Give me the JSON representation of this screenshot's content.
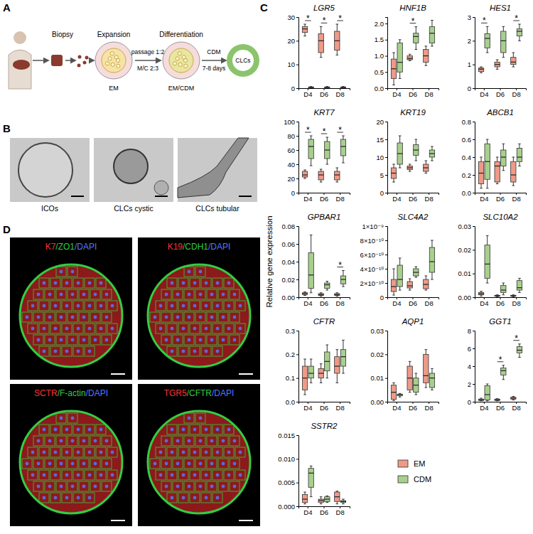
{
  "figure": {
    "panel_labels": [
      "A",
      "B",
      "C",
      "D"
    ],
    "y_label": "Relative gene expression"
  },
  "schematic": {
    "steps": [
      "Biopsy",
      "Expansion",
      "Differentiation"
    ],
    "notes": [
      "passage 1:2",
      "M/C 2:3",
      "CDM",
      "7-8 days"
    ],
    "dishes": [
      "EM",
      "EM/CDM"
    ],
    "product": "CLCs"
  },
  "micrographs": [
    "ICOs",
    "CLCs cystic",
    "CLCs tubular"
  ],
  "immunofluorescence": [
    [
      {
        "text": "K7",
        "color": "#ff3030"
      },
      {
        "text": "/ZO1",
        "color": "#33cc44"
      },
      {
        "text": "/DAPI",
        "color": "#5577ff"
      }
    ],
    [
      {
        "text": "K19",
        "color": "#ff3030"
      },
      {
        "text": "/CDH1",
        "color": "#33cc44"
      },
      {
        "text": "/DAPI",
        "color": "#5577ff"
      }
    ],
    [
      {
        "text": "SCTR",
        "color": "#ff3030"
      },
      {
        "text": "/F-actin",
        "color": "#33cc44"
      },
      {
        "text": "/DAPI",
        "color": "#5577ff"
      }
    ],
    [
      {
        "text": "TGR5",
        "color": "#ff3030"
      },
      {
        "text": "/CFTR",
        "color": "#33cc44"
      },
      {
        "text": "/DAPI",
        "color": "#5577ff"
      }
    ]
  ],
  "chart_data": [
    {
      "type": "box",
      "title": "LGR5",
      "categories": [
        "D4",
        "D6",
        "D8"
      ],
      "ylim": [
        0,
        30
      ],
      "yticks": [
        0,
        10,
        20,
        30
      ],
      "series": [
        {
          "color": "#ee9a87",
          "min": [
            22,
            13,
            14
          ],
          "q1": [
            23.5,
            15,
            16
          ],
          "median": [
            25,
            20,
            20
          ],
          "q3": [
            26,
            23,
            24
          ],
          "max": [
            27,
            26,
            27
          ]
        },
        {
          "color": "#a8d08d",
          "min": [
            0.1,
            0.1,
            0.1
          ],
          "q1": [
            0.2,
            0.2,
            0.2
          ],
          "median": [
            0.3,
            0.3,
            0.3
          ],
          "q3": [
            0.5,
            0.5,
            0.5
          ],
          "max": [
            0.7,
            0.7,
            0.7
          ]
        }
      ],
      "annotations": [
        {
          "category": "D4",
          "text": "*"
        },
        {
          "category": "D6",
          "text": "*"
        },
        {
          "category": "D8",
          "text": "*"
        }
      ]
    },
    {
      "type": "box",
      "title": "HNF1B",
      "categories": [
        "D4",
        "D6",
        "D8"
      ],
      "ylim": [
        0,
        2.2
      ],
      "yticks": [
        {
          "value": 0,
          "label": "0.0"
        },
        0.5,
        {
          "value": 1,
          "label": "1.0"
        },
        1.5,
        {
          "value": 2,
          "label": "2.0"
        }
      ],
      "series": [
        {
          "color": "#ee9a87",
          "min": [
            0.1,
            0.85,
            0.7
          ],
          "q1": [
            0.3,
            0.88,
            0.8
          ],
          "median": [
            0.6,
            0.92,
            1.0
          ],
          "q3": [
            0.9,
            1.0,
            1.2
          ],
          "max": [
            1.1,
            1.05,
            1.3
          ]
        },
        {
          "color": "#a8d08d",
          "min": [
            0.3,
            1.2,
            1.3
          ],
          "q1": [
            0.5,
            1.4,
            1.4
          ],
          "median": [
            0.8,
            1.6,
            1.7
          ],
          "q3": [
            1.4,
            1.7,
            1.9
          ],
          "max": [
            1.5,
            1.9,
            2.1
          ]
        }
      ],
      "annotations": [
        {
          "category": "D6",
          "text": "*"
        }
      ]
    },
    {
      "type": "box",
      "title": "HES1",
      "categories": [
        "D4",
        "D6",
        "D8"
      ],
      "ylim": [
        0,
        3
      ],
      "yticks": [
        0,
        1,
        2,
        3
      ],
      "series": [
        {
          "color": "#ee9a87",
          "min": [
            0.65,
            0.8,
            0.9
          ],
          "q1": [
            0.7,
            0.9,
            1.0
          ],
          "median": [
            0.8,
            1.0,
            1.1
          ],
          "q3": [
            0.85,
            1.1,
            1.3
          ],
          "max": [
            0.9,
            1.2,
            1.5
          ]
        },
        {
          "color": "#a8d08d",
          "min": [
            1.5,
            1.3,
            2.0
          ],
          "q1": [
            1.7,
            1.5,
            2.2
          ],
          "median": [
            2.1,
            2.0,
            2.4
          ],
          "q3": [
            2.3,
            2.4,
            2.5
          ],
          "max": [
            2.6,
            2.6,
            2.7
          ]
        }
      ],
      "annotations": [
        {
          "category": "D4",
          "text": "*"
        },
        {
          "category": "D8",
          "text": "*"
        }
      ]
    },
    {
      "type": "box",
      "title": "KRT7",
      "categories": [
        "D4",
        "D6",
        "D8"
      ],
      "ylim": [
        0,
        100
      ],
      "yticks": [
        0,
        20,
        40,
        60,
        80,
        100
      ],
      "series": [
        {
          "color": "#ee9a87",
          "min": [
            20,
            15,
            15
          ],
          "q1": [
            22,
            18,
            18
          ],
          "median": [
            25,
            25,
            25
          ],
          "q3": [
            30,
            30,
            30
          ],
          "max": [
            32,
            33,
            35
          ]
        },
        {
          "color": "#a8d08d",
          "min": [
            38,
            40,
            42
          ],
          "q1": [
            48,
            48,
            52
          ],
          "median": [
            65,
            60,
            65
          ],
          "q3": [
            75,
            72,
            75
          ],
          "max": [
            80,
            78,
            80
          ]
        }
      ],
      "annotations": [
        {
          "category": "D4",
          "text": "*"
        },
        {
          "category": "D6",
          "text": "*"
        },
        {
          "category": "D8",
          "text": "*"
        }
      ]
    },
    {
      "type": "box",
      "title": "KRT19",
      "categories": [
        "D4",
        "D6",
        "D8"
      ],
      "ylim": [
        0,
        20
      ],
      "yticks": [
        0,
        5,
        10,
        15,
        20
      ],
      "series": [
        {
          "color": "#ee9a87",
          "min": [
            3,
            6,
            5.5
          ],
          "q1": [
            4,
            6.5,
            6
          ],
          "median": [
            5.5,
            7,
            7
          ],
          "q3": [
            7,
            7.5,
            8
          ],
          "max": [
            8,
            8,
            9
          ]
        },
        {
          "color": "#a8d08d",
          "min": [
            7,
            9,
            9
          ],
          "q1": [
            8,
            10.5,
            10
          ],
          "median": [
            11,
            12,
            11
          ],
          "q3": [
            14,
            13.5,
            12
          ],
          "max": [
            16,
            15,
            13
          ]
        }
      ]
    },
    {
      "type": "box",
      "title": "ABCB1",
      "categories": [
        "D4",
        "D6",
        "D8"
      ],
      "ylim": [
        0,
        0.8
      ],
      "yticks": [
        {
          "value": 0,
          "label": "0.0"
        },
        0.2,
        0.4,
        0.6,
        0.8
      ],
      "series": [
        {
          "color": "#ee9a87",
          "min": [
            0.05,
            0.1,
            0.08
          ],
          "q1": [
            0.1,
            0.12,
            0.12
          ],
          "median": [
            0.22,
            0.3,
            0.2
          ],
          "q3": [
            0.35,
            0.35,
            0.35
          ],
          "max": [
            0.4,
            0.4,
            0.4
          ]
        },
        {
          "color": "#a8d08d",
          "min": [
            0.05,
            0.25,
            0.3
          ],
          "q1": [
            0.15,
            0.3,
            0.35
          ],
          "median": [
            0.35,
            0.4,
            0.4
          ],
          "q3": [
            0.55,
            0.48,
            0.5
          ],
          "max": [
            0.6,
            0.55,
            0.55
          ]
        }
      ]
    },
    {
      "type": "box",
      "title": "GPBAR1",
      "categories": [
        "D4",
        "D6",
        "D8"
      ],
      "ylim": [
        0,
        0.08
      ],
      "yticks": [
        {
          "value": 0,
          "label": "0.00"
        },
        0.02,
        0.04,
        0.06,
        0.08
      ],
      "series": [
        {
          "color": "#ee9a87",
          "min": [
            0.002,
            0.001,
            0.001
          ],
          "q1": [
            0.003,
            0.002,
            0.002
          ],
          "median": [
            0.004,
            0.003,
            0.003
          ],
          "q3": [
            0.005,
            0.004,
            0.004
          ],
          "max": [
            0.006,
            0.005,
            0.005
          ]
        },
        {
          "color": "#a8d08d",
          "min": [
            0.005,
            0.008,
            0.012
          ],
          "q1": [
            0.01,
            0.01,
            0.015
          ],
          "median": [
            0.025,
            0.014,
            0.02
          ],
          "q3": [
            0.05,
            0.016,
            0.024
          ],
          "max": [
            0.07,
            0.018,
            0.03
          ]
        }
      ],
      "annotations": [
        {
          "category": "D8",
          "text": "*"
        }
      ]
    },
    {
      "type": "box",
      "title": "SLC4A2",
      "categories": [
        "D4",
        "D6",
        "D8"
      ],
      "ylim": [
        0,
        1e-09
      ],
      "yticks": [
        0,
        {
          "value": 2e-10,
          "label": "2×10⁻¹⁰"
        },
        {
          "value": 4e-10,
          "label": "4×10⁻¹⁰"
        },
        {
          "value": 6e-10,
          "label": "6×10⁻¹⁰"
        },
        {
          "value": 8e-10,
          "label": "8×10⁻¹⁰"
        },
        {
          "value": 1e-09,
          "label": "1×10⁻⁹"
        }
      ],
      "series": [
        {
          "color": "#ee9a87",
          "min": [
            3e-11,
            1e-10,
            1e-10
          ],
          "q1": [
            8e-11,
            1.3e-10,
            1.2e-10
          ],
          "median": [
            1.5e-10,
            1.6e-10,
            1.8e-10
          ],
          "q3": [
            2.5e-10,
            2.2e-10,
            2.5e-10
          ],
          "max": [
            4e-10,
            2.6e-10,
            3e-10
          ]
        },
        {
          "color": "#a8d08d",
          "min": [
            1e-10,
            2.8e-10,
            2.5e-10
          ],
          "q1": [
            1.5e-10,
            3e-10,
            3.5e-10
          ],
          "median": [
            2.5e-10,
            3.5e-10,
            5e-10
          ],
          "q3": [
            4.5e-10,
            4e-10,
            7e-10
          ],
          "max": [
            5.5e-10,
            4.3e-10,
            8e-10
          ]
        }
      ]
    },
    {
      "type": "box",
      "title": "SLC10A2",
      "categories": [
        "D4",
        "D6",
        "D8"
      ],
      "ylim": [
        0,
        0.03
      ],
      "yticks": [
        {
          "value": 0,
          "label": "0.00"
        },
        0.01,
        0.02,
        0.03
      ],
      "series": [
        {
          "color": "#ee9a87",
          "min": [
            0.0005,
            0.0002,
            0.0002
          ],
          "q1": [
            0.001,
            0.0004,
            0.0004
          ],
          "median": [
            0.0015,
            0.0006,
            0.0006
          ],
          "q3": [
            0.002,
            0.0008,
            0.0008
          ],
          "max": [
            0.0025,
            0.001,
            0.001
          ]
        },
        {
          "color": "#a8d08d",
          "min": [
            0.006,
            0.001,
            0.002
          ],
          "q1": [
            0.008,
            0.002,
            0.003
          ],
          "median": [
            0.014,
            0.003,
            0.004
          ],
          "q3": [
            0.022,
            0.005,
            0.007
          ],
          "max": [
            0.026,
            0.006,
            0.008
          ]
        }
      ]
    },
    {
      "type": "box",
      "title": "CFTR",
      "categories": [
        "D4",
        "D6",
        "D8"
      ],
      "ylim": [
        0,
        0.3
      ],
      "yticks": [
        {
          "value": 0,
          "label": "0.0"
        },
        0.1,
        0.2,
        0.3
      ],
      "series": [
        {
          "color": "#ee9a87",
          "min": [
            0.03,
            0.08,
            0.08
          ],
          "q1": [
            0.05,
            0.1,
            0.12
          ],
          "median": [
            0.1,
            0.12,
            0.15
          ],
          "q3": [
            0.15,
            0.14,
            0.19
          ],
          "max": [
            0.18,
            0.16,
            0.22
          ]
        },
        {
          "color": "#a8d08d",
          "min": [
            0.08,
            0.1,
            0.12
          ],
          "q1": [
            0.1,
            0.13,
            0.15
          ],
          "median": [
            0.12,
            0.17,
            0.19
          ],
          "q3": [
            0.15,
            0.21,
            0.22
          ],
          "max": [
            0.18,
            0.24,
            0.26
          ]
        }
      ]
    },
    {
      "type": "box",
      "title": "AQP1",
      "categories": [
        "D4",
        "D6",
        "D8"
      ],
      "ylim": [
        0,
        0.03
      ],
      "yticks": [
        {
          "value": 0,
          "label": "0.00"
        },
        0.01,
        0.02,
        0.03
      ],
      "series": [
        {
          "color": "#ee9a87",
          "min": [
            0.0005,
            0.004,
            0.006
          ],
          "q1": [
            0.001,
            0.005,
            0.008
          ],
          "median": [
            0.004,
            0.01,
            0.011
          ],
          "q3": [
            0.007,
            0.015,
            0.02
          ],
          "max": [
            0.008,
            0.017,
            0.022
          ]
        },
        {
          "color": "#a8d08d",
          "min": [
            0.002,
            0.003,
            0.005
          ],
          "q1": [
            0.0025,
            0.004,
            0.006
          ],
          "median": [
            0.003,
            0.007,
            0.01
          ],
          "q3": [
            0.0032,
            0.01,
            0.012
          ],
          "max": [
            0.0035,
            0.012,
            0.014
          ]
        }
      ]
    },
    {
      "type": "box",
      "title": "GGT1",
      "categories": [
        "D4",
        "D6",
        "D8"
      ],
      "ylim": [
        0,
        8
      ],
      "yticks": [
        0,
        2,
        4,
        6,
        8
      ],
      "series": [
        {
          "color": "#ee9a87",
          "min": [
            0.1,
            0.1,
            0.2
          ],
          "q1": [
            0.15,
            0.15,
            0.3
          ],
          "median": [
            0.2,
            0.2,
            0.4
          ],
          "q3": [
            0.3,
            0.3,
            0.5
          ],
          "max": [
            0.4,
            0.35,
            0.6
          ]
        },
        {
          "color": "#a8d08d",
          "min": [
            0.1,
            2.5,
            5
          ],
          "q1": [
            0.2,
            3,
            5.5
          ],
          "median": [
            0.8,
            3.5,
            5.8
          ],
          "q3": [
            1.8,
            3.8,
            6.2
          ],
          "max": [
            2.0,
            4.1,
            6.5
          ]
        }
      ],
      "annotations": [
        {
          "category": "D6",
          "text": "*"
        },
        {
          "category": "D8",
          "text": "*"
        }
      ]
    },
    {
      "type": "box",
      "title": "SSTR2",
      "categories": [
        "D4",
        "D6",
        "D8"
      ],
      "ylim": [
        0,
        0.015
      ],
      "yticks": [
        {
          "value": 0,
          "label": "0.000"
        },
        0.005,
        {
          "value": 0.01,
          "label": "0.010"
        },
        0.015
      ],
      "legend": "right",
      "series": [
        {
          "name": "EM",
          "color": "#ee9a87",
          "min": [
            0.0005,
            0.0005,
            0.0005
          ],
          "q1": [
            0.0008,
            0.0008,
            0.001
          ],
          "median": [
            0.0015,
            0.0012,
            0.002
          ],
          "q3": [
            0.0025,
            0.0015,
            0.003
          ],
          "max": [
            0.003,
            0.002,
            0.0032
          ]
        },
        {
          "name": "CDM",
          "color": "#a8d08d",
          "min": [
            0.002,
            0.0008,
            0.0005
          ],
          "q1": [
            0.004,
            0.001,
            0.0008
          ],
          "median": [
            0.007,
            0.0015,
            0.001
          ],
          "q3": [
            0.008,
            0.002,
            0.0012
          ],
          "max": [
            0.0085,
            0.0022,
            0.0015
          ]
        }
      ]
    }
  ]
}
